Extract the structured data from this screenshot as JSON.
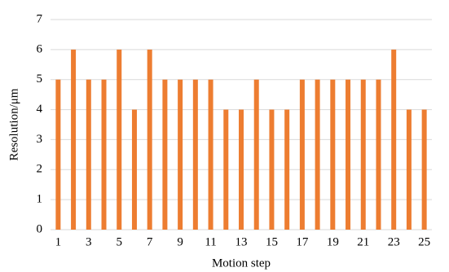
{
  "chart_data": {
    "type": "bar",
    "x_label": "Motion step",
    "y_label": "Resolution/μm",
    "categories": [
      "1",
      null,
      "3",
      null,
      "5",
      null,
      "7",
      null,
      "9",
      null,
      "11",
      null,
      "13",
      null,
      "15",
      null,
      "17",
      null,
      "19",
      null,
      "21",
      null,
      "23",
      null,
      "25"
    ],
    "values": [
      5,
      6,
      5,
      5,
      6,
      4,
      6,
      5,
      5,
      5,
      5,
      4,
      4,
      5,
      4,
      4,
      5,
      5,
      5,
      5,
      5,
      5,
      6,
      4,
      4
    ],
    "color": "#ed7d31",
    "ylim": [
      0,
      7
    ],
    "yticks": [
      0,
      1,
      2,
      3,
      4,
      5,
      6,
      7
    ],
    "grid": true
  }
}
